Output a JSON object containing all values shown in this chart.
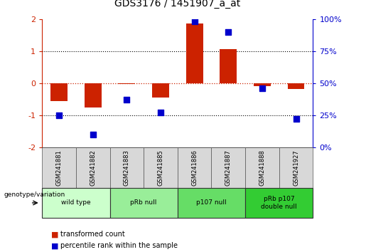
{
  "title": "GDS3176 / 1451907_a_at",
  "samples": [
    "GSM241881",
    "GSM241882",
    "GSM241883",
    "GSM241885",
    "GSM241886",
    "GSM241887",
    "GSM241888",
    "GSM241927"
  ],
  "red_values": [
    -0.55,
    -0.75,
    -0.02,
    -0.45,
    1.85,
    1.05,
    -0.1,
    -0.18
  ],
  "blue_pct": [
    25,
    10,
    37,
    27,
    98,
    90,
    46,
    22
  ],
  "groups": [
    {
      "label": "wild type",
      "start": 0,
      "end": 2,
      "color": "#ccffcc"
    },
    {
      "label": "pRb null",
      "start": 2,
      "end": 4,
      "color": "#99ee99"
    },
    {
      "label": "p107 null",
      "start": 4,
      "end": 6,
      "color": "#66dd66"
    },
    {
      "label": "pRb p107\ndouble null",
      "start": 6,
      "end": 8,
      "color": "#33cc33"
    }
  ],
  "ylim": [
    -2,
    2
  ],
  "yticks_left": [
    -2,
    -1,
    0,
    1,
    2
  ],
  "yticks_right_vals": [
    -2,
    -1,
    0,
    1,
    2
  ],
  "yticks_right_labels": [
    "0%",
    "25%",
    "50%",
    "75%",
    "100%"
  ],
  "red_color": "#cc2200",
  "blue_color": "#0000cc",
  "bar_width": 0.5,
  "marker_size": 40,
  "sample_row_color": "#d8d8d8",
  "bg_color": "#ffffff"
}
